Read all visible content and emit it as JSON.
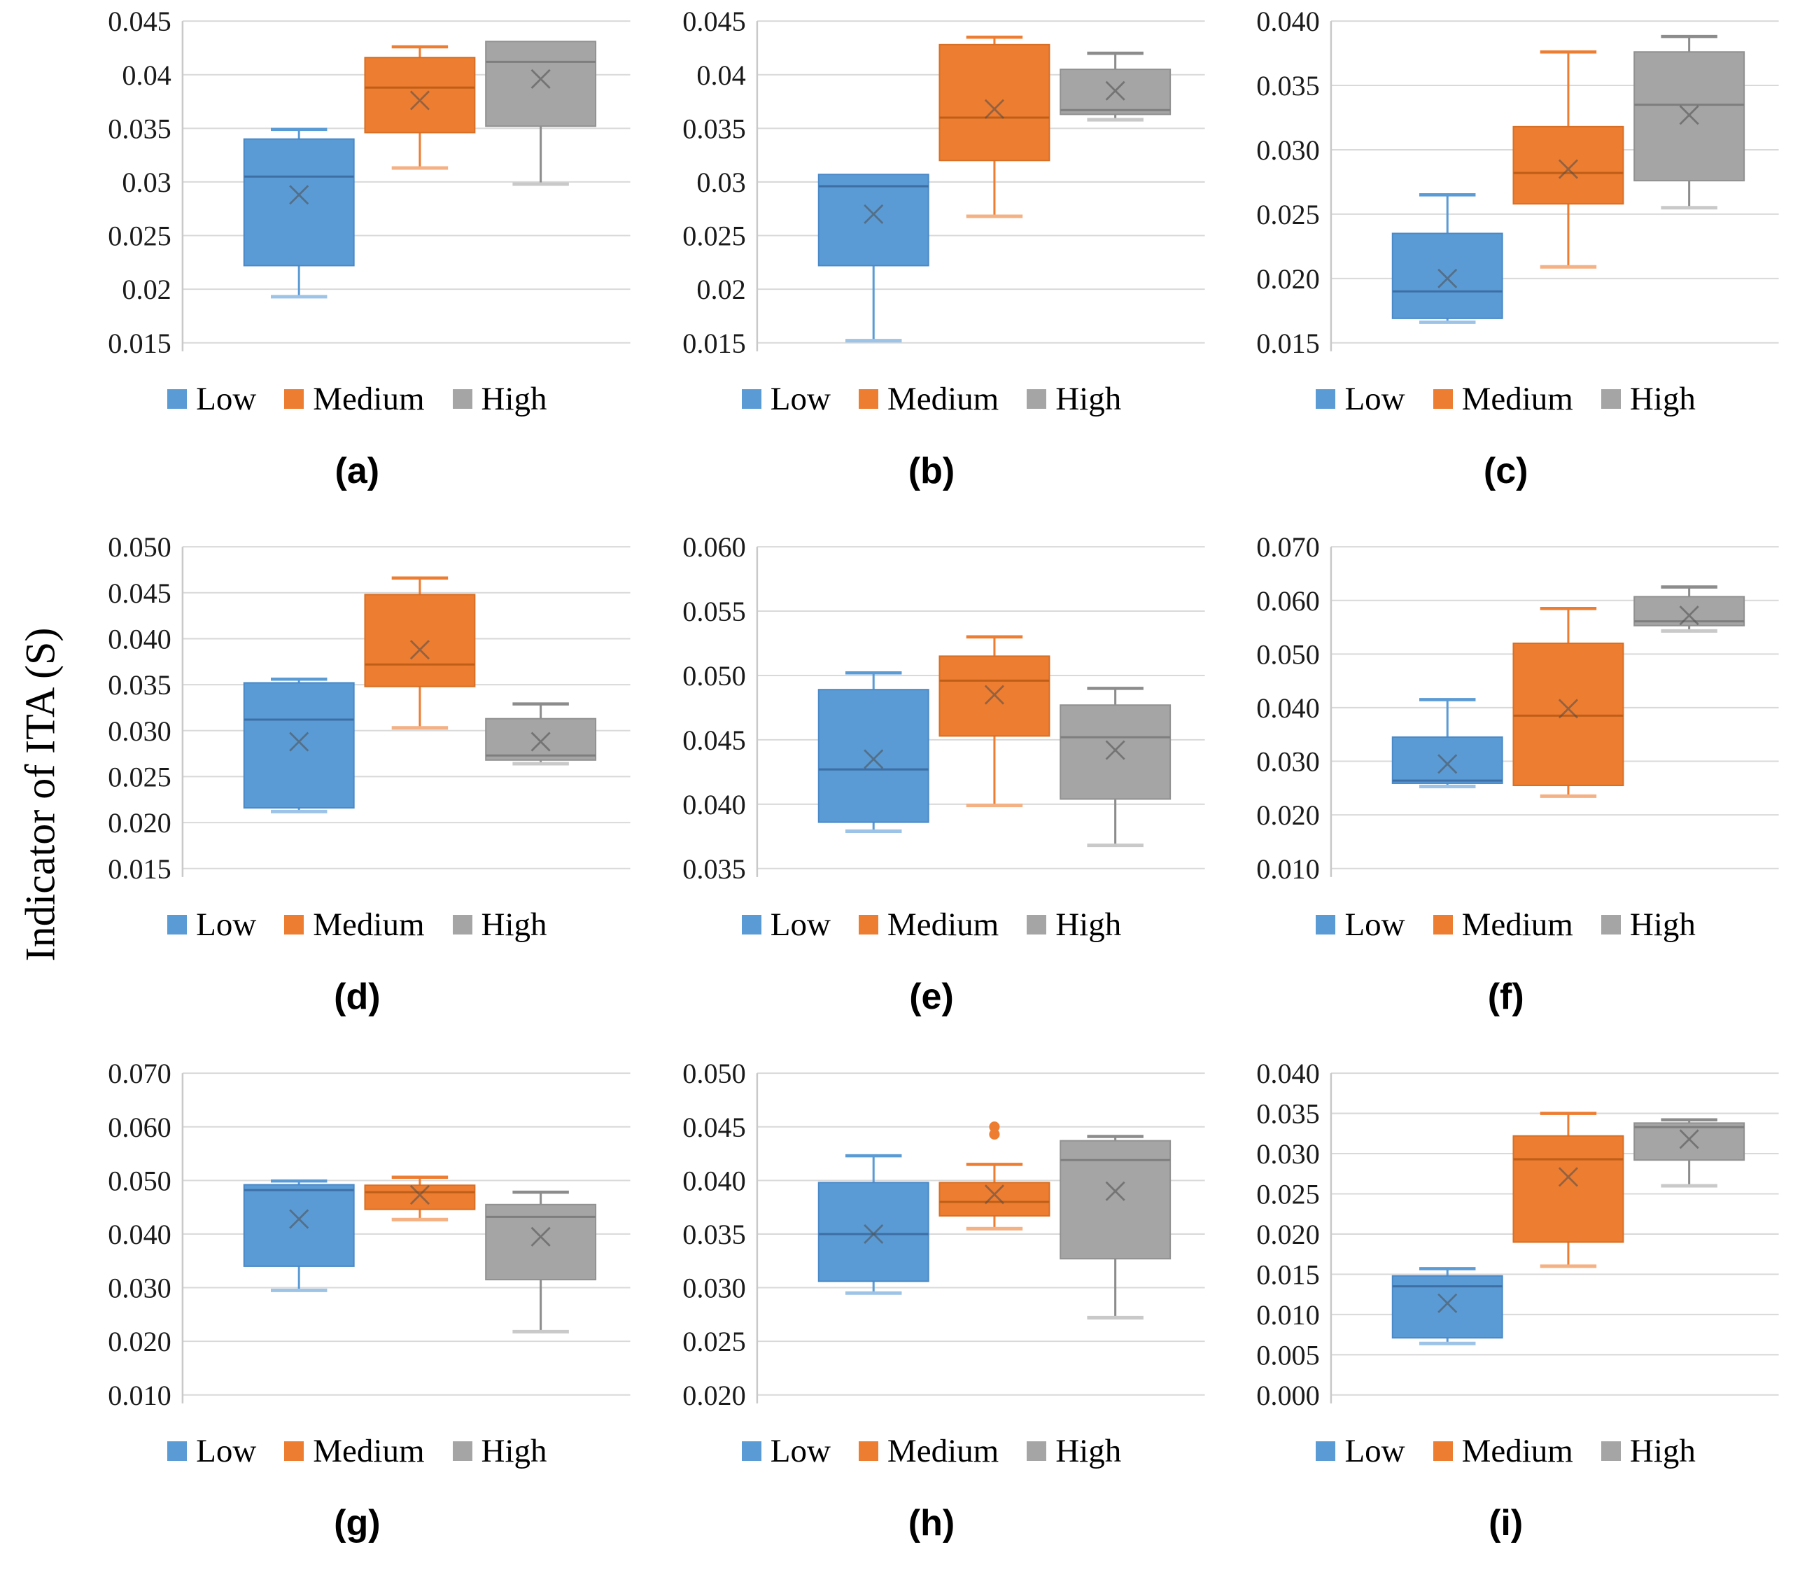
{
  "figure": {
    "y_axis_label": "Indicator of ITA (S)",
    "legend": [
      "Low",
      "Medium",
      "High"
    ],
    "legend_position": "bottom",
    "grid": true,
    "colors": {
      "low": "#5B9BD5",
      "medium": "#ED7D31",
      "high": "#A5A5A5",
      "gridline": "#D9D9D9",
      "axis_line": "#C9C9C9",
      "tick_text": "#1A1A1A",
      "mean_marker": "#4D4D4D"
    },
    "series_styles": {
      "Low": {
        "fill": "#5B9BD5",
        "edge": "#4A89C8",
        "median": "#3D6FA5",
        "whisker": "#5B9BD5",
        "cap": "#9DC3E6"
      },
      "Medium": {
        "fill": "#ED7D31",
        "edge": "#D86F24",
        "median": "#BF5E17",
        "whisker": "#ED7D31",
        "cap": "#F4B183"
      },
      "High": {
        "fill": "#A5A5A5",
        "edge": "#919191",
        "median": "#7E7E7E",
        "whisker": "#8C8C8C",
        "cap": "#C9C9C9"
      }
    }
  },
  "chart_data": [
    {
      "id": "a",
      "caption": "(a)",
      "type": "box",
      "xlabel": "",
      "ylabel": "",
      "ylim": [
        0.015,
        0.045
      ],
      "ytick_labels": [
        "0.045",
        "0.04",
        "0.035",
        "0.03",
        "0.025",
        "0.02",
        "0.015"
      ],
      "series": [
        {
          "name": "Low",
          "whisker_low": 0.0193,
          "q1": 0.0222,
          "median": 0.0305,
          "mean": 0.0288,
          "q3": 0.034,
          "whisker_high": 0.0349,
          "outliers": []
        },
        {
          "name": "Medium",
          "whisker_low": 0.0313,
          "q1": 0.0346,
          "median": 0.0388,
          "mean": 0.0376,
          "q3": 0.0416,
          "whisker_high": 0.0426,
          "outliers": []
        },
        {
          "name": "High",
          "whisker_low": 0.0298,
          "q1": 0.0352,
          "median": 0.0412,
          "mean": 0.0396,
          "q3": 0.0431,
          "whisker_high": 0.0431,
          "outliers": []
        }
      ]
    },
    {
      "id": "b",
      "caption": "(b)",
      "type": "box",
      "xlabel": "",
      "ylabel": "",
      "ylim": [
        0.015,
        0.045
      ],
      "ytick_labels": [
        "0.045",
        "0.04",
        "0.035",
        "0.03",
        "0.025",
        "0.02",
        "0.015"
      ],
      "series": [
        {
          "name": "Low",
          "whisker_low": 0.0152,
          "q1": 0.0222,
          "median": 0.0296,
          "mean": 0.027,
          "q3": 0.0307,
          "whisker_high": 0.0308,
          "outliers": []
        },
        {
          "name": "Medium",
          "whisker_low": 0.0268,
          "q1": 0.032,
          "median": 0.036,
          "mean": 0.0368,
          "q3": 0.0428,
          "whisker_high": 0.0435,
          "outliers": []
        },
        {
          "name": "High",
          "whisker_low": 0.0358,
          "q1": 0.0363,
          "median": 0.0367,
          "mean": 0.0385,
          "q3": 0.0405,
          "whisker_high": 0.042,
          "outliers": []
        }
      ]
    },
    {
      "id": "c",
      "caption": "(c)",
      "type": "box",
      "xlabel": "",
      "ylabel": "",
      "ylim": [
        0.015,
        0.04
      ],
      "ytick_labels": [
        "0.040",
        "0.035",
        "0.030",
        "0.025",
        "0.020",
        "0.015"
      ],
      "series": [
        {
          "name": "Low",
          "whisker_low": 0.0166,
          "q1": 0.0169,
          "median": 0.019,
          "mean": 0.02,
          "q3": 0.0235,
          "whisker_high": 0.0265,
          "outliers": []
        },
        {
          "name": "Medium",
          "whisker_low": 0.0209,
          "q1": 0.0258,
          "median": 0.0282,
          "mean": 0.0285,
          "q3": 0.0318,
          "whisker_high": 0.0376,
          "outliers": []
        },
        {
          "name": "High",
          "whisker_low": 0.0255,
          "q1": 0.0276,
          "median": 0.0335,
          "mean": 0.0327,
          "q3": 0.0376,
          "whisker_high": 0.0388,
          "outliers": []
        }
      ]
    },
    {
      "id": "d",
      "caption": "(d)",
      "type": "box",
      "xlabel": "",
      "ylabel": "",
      "ylim": [
        0.015,
        0.05
      ],
      "ytick_labels": [
        "0.050",
        "0.045",
        "0.040",
        "0.035",
        "0.030",
        "0.025",
        "0.020",
        "0.015"
      ],
      "series": [
        {
          "name": "Low",
          "whisker_low": 0.0212,
          "q1": 0.0216,
          "median": 0.0312,
          "mean": 0.0288,
          "q3": 0.0352,
          "whisker_high": 0.0356,
          "outliers": []
        },
        {
          "name": "Medium",
          "whisker_low": 0.0303,
          "q1": 0.0348,
          "median": 0.0372,
          "mean": 0.0388,
          "q3": 0.0448,
          "whisker_high": 0.0466,
          "outliers": []
        },
        {
          "name": "High",
          "whisker_low": 0.0264,
          "q1": 0.0268,
          "median": 0.0273,
          "mean": 0.0288,
          "q3": 0.0313,
          "whisker_high": 0.0329,
          "outliers": []
        }
      ]
    },
    {
      "id": "e",
      "caption": "(e)",
      "type": "box",
      "xlabel": "",
      "ylabel": "",
      "ylim": [
        0.035,
        0.06
      ],
      "ytick_labels": [
        "0.060",
        "0.055",
        "0.050",
        "0.045",
        "0.040",
        "0.035"
      ],
      "series": [
        {
          "name": "Low",
          "whisker_low": 0.0379,
          "q1": 0.0386,
          "median": 0.0427,
          "mean": 0.0435,
          "q3": 0.0489,
          "whisker_high": 0.0502,
          "outliers": []
        },
        {
          "name": "Medium",
          "whisker_low": 0.0399,
          "q1": 0.0453,
          "median": 0.0496,
          "mean": 0.0485,
          "q3": 0.0515,
          "whisker_high": 0.053,
          "outliers": []
        },
        {
          "name": "High",
          "whisker_low": 0.0368,
          "q1": 0.0404,
          "median": 0.0452,
          "mean": 0.0442,
          "q3": 0.0477,
          "whisker_high": 0.049,
          "outliers": []
        }
      ]
    },
    {
      "id": "f",
      "caption": "(f)",
      "type": "box",
      "xlabel": "",
      "ylabel": "",
      "ylim": [
        0.01,
        0.07
      ],
      "ytick_labels": [
        "0.070",
        "0.060",
        "0.050",
        "0.040",
        "0.030",
        "0.020",
        "0.010"
      ],
      "series": [
        {
          "name": "Low",
          "whisker_low": 0.0253,
          "q1": 0.0259,
          "median": 0.0264,
          "mean": 0.0295,
          "q3": 0.0345,
          "whisker_high": 0.0415,
          "outliers": []
        },
        {
          "name": "Medium",
          "whisker_low": 0.0235,
          "q1": 0.0255,
          "median": 0.0385,
          "mean": 0.0398,
          "q3": 0.052,
          "whisker_high": 0.0585,
          "outliers": []
        },
        {
          "name": "High",
          "whisker_low": 0.0543,
          "q1": 0.0553,
          "median": 0.0561,
          "mean": 0.0572,
          "q3": 0.0607,
          "whisker_high": 0.0625,
          "outliers": []
        }
      ]
    },
    {
      "id": "g",
      "caption": "(g)",
      "type": "box",
      "xlabel": "",
      "ylabel": "",
      "ylim": [
        0.01,
        0.07
      ],
      "ytick_labels": [
        "0.070",
        "0.060",
        "0.050",
        "0.040",
        "0.030",
        "0.020",
        "0.010"
      ],
      "series": [
        {
          "name": "Low",
          "whisker_low": 0.0295,
          "q1": 0.034,
          "median": 0.0482,
          "mean": 0.0428,
          "q3": 0.0492,
          "whisker_high": 0.0499,
          "outliers": []
        },
        {
          "name": "Medium",
          "whisker_low": 0.0427,
          "q1": 0.0446,
          "median": 0.0478,
          "mean": 0.0473,
          "q3": 0.0491,
          "whisker_high": 0.0506,
          "outliers": []
        },
        {
          "name": "High",
          "whisker_low": 0.0218,
          "q1": 0.0315,
          "median": 0.0432,
          "mean": 0.0395,
          "q3": 0.0455,
          "whisker_high": 0.0478,
          "outliers": []
        }
      ]
    },
    {
      "id": "h",
      "caption": "(h)",
      "type": "box",
      "xlabel": "",
      "ylabel": "",
      "ylim": [
        0.02,
        0.05
      ],
      "ytick_labels": [
        "0.050",
        "0.045",
        "0.040",
        "0.035",
        "0.030",
        "0.025",
        "0.020"
      ],
      "series": [
        {
          "name": "Low",
          "whisker_low": 0.0295,
          "q1": 0.0306,
          "median": 0.035,
          "mean": 0.035,
          "q3": 0.0398,
          "whisker_high": 0.0423,
          "outliers": []
        },
        {
          "name": "Medium",
          "whisker_low": 0.0355,
          "q1": 0.0367,
          "median": 0.038,
          "mean": 0.0387,
          "q3": 0.0398,
          "whisker_high": 0.0415,
          "outliers": [
            0.0443,
            0.045
          ]
        },
        {
          "name": "High",
          "whisker_low": 0.0272,
          "q1": 0.0327,
          "median": 0.0419,
          "mean": 0.039,
          "q3": 0.0437,
          "whisker_high": 0.0441,
          "outliers": []
        }
      ]
    },
    {
      "id": "i",
      "caption": "(i)",
      "type": "box",
      "xlabel": "",
      "ylabel": "",
      "ylim": [
        0.0,
        0.04
      ],
      "ytick_labels": [
        "0.040",
        "0.035",
        "0.030",
        "0.025",
        "0.020",
        "0.015",
        "0.010",
        "0.005",
        "0.000"
      ],
      "series": [
        {
          "name": "Low",
          "whisker_low": 0.0064,
          "q1": 0.0071,
          "median": 0.0135,
          "mean": 0.0114,
          "q3": 0.0148,
          "whisker_high": 0.0157,
          "outliers": []
        },
        {
          "name": "Medium",
          "whisker_low": 0.016,
          "q1": 0.019,
          "median": 0.0293,
          "mean": 0.0271,
          "q3": 0.0322,
          "whisker_high": 0.035,
          "outliers": []
        },
        {
          "name": "High",
          "whisker_low": 0.026,
          "q1": 0.0292,
          "median": 0.0333,
          "mean": 0.0318,
          "q3": 0.0338,
          "whisker_high": 0.0342,
          "outliers": []
        }
      ]
    }
  ]
}
